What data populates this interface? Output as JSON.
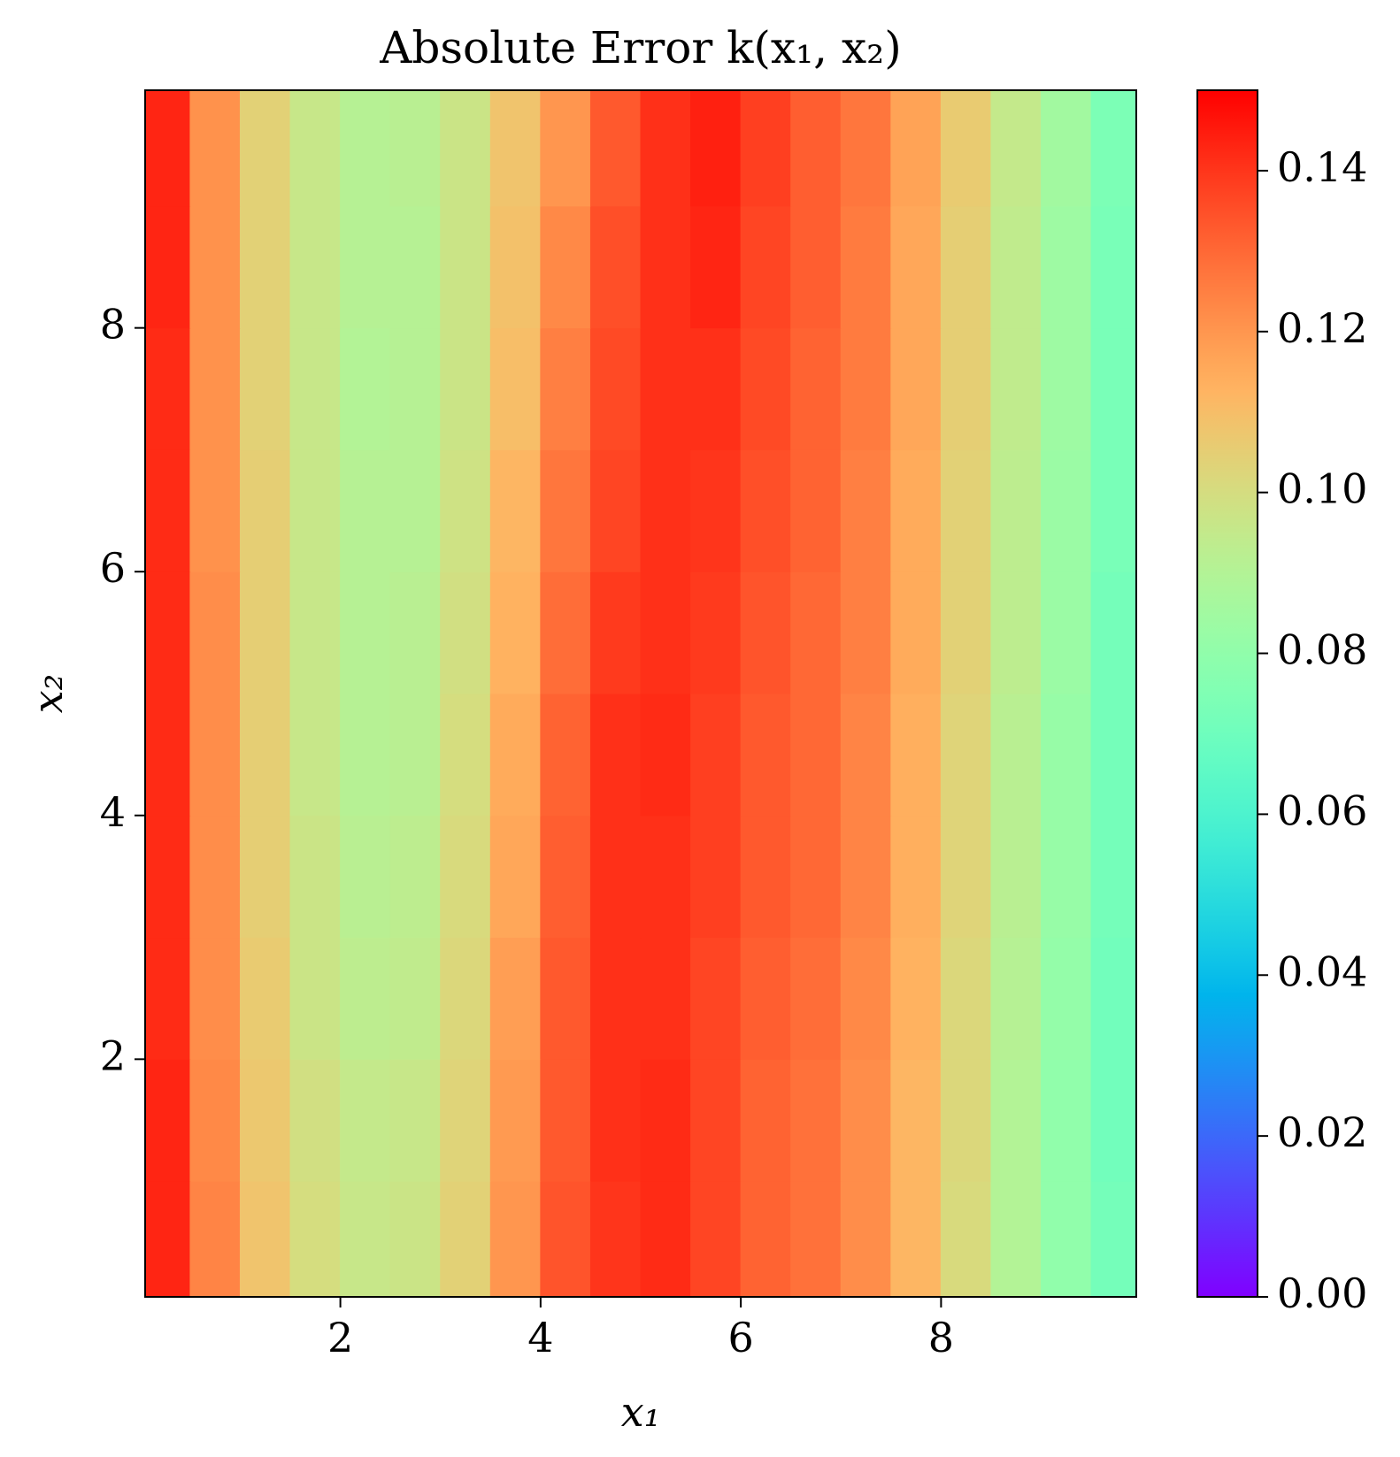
{
  "chart_data": {
    "type": "heatmap",
    "title": "Absolute Error k(x₁, x₂)",
    "x_label": "x₁",
    "y_label": "x₂",
    "colormap": "rainbow",
    "x": [
      0.25,
      0.75,
      1.25,
      1.75,
      2.25,
      2.75,
      3.25,
      3.75,
      4.25,
      4.75,
      5.25,
      5.75,
      6.25,
      6.75,
      7.25,
      7.75,
      8.25,
      8.75,
      9.25,
      9.75
    ],
    "y": [
      0.5,
      1.5,
      2.5,
      3.5,
      4.5,
      5.5,
      6.5,
      7.5,
      8.5,
      9.5
    ],
    "z": [
      [
        0.143,
        0.124,
        0.108,
        0.1,
        0.096,
        0.097,
        0.104,
        0.12,
        0.134,
        0.14,
        0.142,
        0.137,
        0.131,
        0.128,
        0.122,
        0.112,
        0.101,
        0.09,
        0.08,
        0.072
      ],
      [
        0.143,
        0.123,
        0.107,
        0.099,
        0.095,
        0.096,
        0.103,
        0.119,
        0.133,
        0.141,
        0.142,
        0.137,
        0.131,
        0.128,
        0.122,
        0.112,
        0.102,
        0.09,
        0.08,
        0.071
      ],
      [
        0.142,
        0.122,
        0.106,
        0.097,
        0.093,
        0.094,
        0.102,
        0.118,
        0.133,
        0.141,
        0.141,
        0.137,
        0.132,
        0.129,
        0.123,
        0.113,
        0.102,
        0.091,
        0.081,
        0.071
      ],
      [
        0.142,
        0.122,
        0.105,
        0.097,
        0.092,
        0.093,
        0.101,
        0.116,
        0.132,
        0.141,
        0.141,
        0.138,
        0.133,
        0.13,
        0.124,
        0.114,
        0.103,
        0.092,
        0.082,
        0.072
      ],
      [
        0.142,
        0.122,
        0.105,
        0.096,
        0.091,
        0.092,
        0.1,
        0.115,
        0.131,
        0.141,
        0.142,
        0.138,
        0.133,
        0.13,
        0.124,
        0.114,
        0.103,
        0.092,
        0.082,
        0.072
      ],
      [
        0.142,
        0.122,
        0.105,
        0.096,
        0.091,
        0.092,
        0.099,
        0.113,
        0.129,
        0.139,
        0.141,
        0.139,
        0.134,
        0.13,
        0.125,
        0.115,
        0.104,
        0.093,
        0.083,
        0.072
      ],
      [
        0.142,
        0.121,
        0.105,
        0.096,
        0.091,
        0.091,
        0.098,
        0.112,
        0.127,
        0.137,
        0.141,
        0.14,
        0.135,
        0.131,
        0.125,
        0.115,
        0.104,
        0.093,
        0.083,
        0.073
      ],
      [
        0.142,
        0.121,
        0.104,
        0.096,
        0.09,
        0.091,
        0.097,
        0.11,
        0.125,
        0.136,
        0.141,
        0.141,
        0.136,
        0.131,
        0.126,
        0.116,
        0.105,
        0.094,
        0.084,
        0.073
      ],
      [
        0.143,
        0.121,
        0.104,
        0.096,
        0.091,
        0.091,
        0.097,
        0.109,
        0.123,
        0.135,
        0.141,
        0.143,
        0.137,
        0.132,
        0.126,
        0.116,
        0.105,
        0.094,
        0.084,
        0.073
      ],
      [
        0.143,
        0.121,
        0.104,
        0.096,
        0.091,
        0.092,
        0.097,
        0.108,
        0.12,
        0.133,
        0.141,
        0.144,
        0.138,
        0.132,
        0.127,
        0.117,
        0.106,
        0.095,
        0.085,
        0.074
      ]
    ],
    "xlim": [
      0.05,
      9.95
    ],
    "ylim": [
      0.05,
      9.95
    ],
    "xticks": [
      2,
      4,
      6,
      8
    ],
    "yticks": [
      2,
      4,
      6,
      8
    ],
    "clim": [
      0,
      0.15
    ],
    "cticks": [
      {
        "value": 0,
        "label": "0.00"
      },
      {
        "value": 0.02,
        "label": "0.02"
      },
      {
        "value": 0.04,
        "label": "0.04"
      },
      {
        "value": 0.06,
        "label": "0.06"
      },
      {
        "value": 0.08,
        "label": "0.08"
      },
      {
        "value": 0.1,
        "label": "0.10"
      },
      {
        "value": 0.12,
        "label": "0.12"
      },
      {
        "value": 0.14,
        "label": "0.14"
      }
    ]
  }
}
